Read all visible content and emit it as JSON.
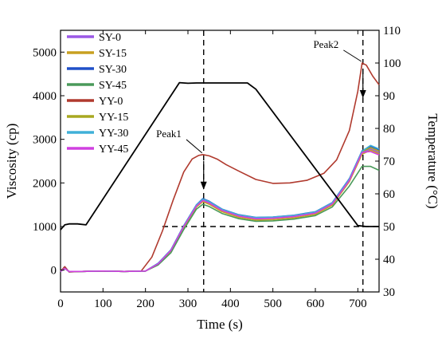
{
  "chart_data": {
    "type": "line",
    "xlabel": "Time (s)",
    "ylabel": "Viscosity (cp)",
    "y2label": "Temperature (°C)",
    "xlim": [
      0,
      750
    ],
    "ylim": [
      -500,
      5500
    ],
    "y2lim": [
      30,
      110
    ],
    "xticks": [
      0,
      100,
      200,
      300,
      400,
      500,
      600,
      700
    ],
    "yticks": [
      0,
      1000,
      2000,
      3000,
      4000,
      5000
    ],
    "y2ticks": [
      30,
      40,
      50,
      60,
      70,
      80,
      90,
      100,
      110
    ],
    "grid": false,
    "legend_position": "top-left",
    "series": [
      {
        "name": "SY-0",
        "color": "#9b59e6",
        "axis": "left",
        "x": [
          0,
          10,
          20,
          50,
          100,
          150,
          200,
          230,
          260,
          290,
          320,
          335,
          350,
          380,
          420,
          460,
          500,
          550,
          600,
          640,
          680,
          710,
          730,
          750
        ],
        "values": [
          -30,
          80,
          -40,
          -30,
          -20,
          -30,
          -20,
          150,
          450,
          1000,
          1480,
          1600,
          1540,
          1370,
          1240,
          1180,
          1190,
          1230,
          1310,
          1520,
          2060,
          2690,
          2780,
          2700
        ]
      },
      {
        "name": "SY-15",
        "color": "#c8a020",
        "axis": "left",
        "x": [
          0,
          10,
          20,
          50,
          100,
          150,
          200,
          230,
          260,
          290,
          320,
          335,
          350,
          380,
          420,
          460,
          500,
          550,
          600,
          640,
          680,
          710,
          730,
          750
        ],
        "values": [
          -30,
          40,
          -30,
          -30,
          -20,
          -30,
          -20,
          140,
          440,
          980,
          1450,
          1570,
          1510,
          1340,
          1210,
          1150,
          1160,
          1200,
          1280,
          1490,
          2030,
          2660,
          2750,
          2670
        ]
      },
      {
        "name": "SY-30",
        "color": "#2050c8",
        "axis": "left",
        "x": [
          0,
          10,
          20,
          50,
          100,
          150,
          200,
          230,
          260,
          290,
          320,
          335,
          350,
          380,
          420,
          460,
          500,
          550,
          600,
          640,
          680,
          710,
          730,
          750
        ],
        "values": [
          -30,
          40,
          -30,
          -30,
          -20,
          -30,
          -20,
          160,
          470,
          1020,
          1500,
          1640,
          1580,
          1400,
          1270,
          1210,
          1220,
          1260,
          1340,
          1550,
          2100,
          2740,
          2840,
          2760
        ]
      },
      {
        "name": "SY-45",
        "color": "#4a9a5a",
        "axis": "left",
        "x": [
          0,
          10,
          20,
          50,
          100,
          150,
          200,
          230,
          260,
          290,
          320,
          335,
          350,
          380,
          420,
          460,
          500,
          550,
          600,
          640,
          680,
          710,
          730,
          750
        ],
        "values": [
          -30,
          40,
          -30,
          -30,
          -20,
          -30,
          -20,
          120,
          400,
          930,
          1400,
          1510,
          1460,
          1300,
          1180,
          1120,
          1130,
          1170,
          1250,
          1450,
          1930,
          2380,
          2380,
          2290
        ]
      },
      {
        "name": "YY-0",
        "color": "#b03a2e",
        "axis": "left",
        "x": [
          0,
          10,
          20,
          50,
          100,
          150,
          190,
          215,
          240,
          265,
          290,
          310,
          325,
          335,
          350,
          370,
          390,
          420,
          460,
          500,
          540,
          580,
          620,
          650,
          680,
          700,
          710,
          720,
          735,
          750
        ],
        "values": [
          -30,
          80,
          -40,
          -30,
          -20,
          -30,
          -20,
          300,
          900,
          1600,
          2250,
          2550,
          2630,
          2650,
          2620,
          2540,
          2420,
          2270,
          2080,
          1990,
          2000,
          2060,
          2220,
          2530,
          3200,
          4100,
          4750,
          4700,
          4450,
          4250
        ]
      },
      {
        "name": "YY-15",
        "color": "#a8a820",
        "axis": "left",
        "x": [
          0,
          10,
          20,
          50,
          100,
          150,
          200,
          230,
          260,
          290,
          320,
          335,
          350,
          380,
          420,
          460,
          500,
          550,
          600,
          640,
          680,
          710,
          730,
          750
        ],
        "values": [
          -30,
          40,
          -30,
          -30,
          -20,
          -30,
          -20,
          150,
          460,
          1010,
          1490,
          1620,
          1560,
          1390,
          1260,
          1200,
          1210,
          1250,
          1330,
          1540,
          2080,
          2720,
          2810,
          2730
        ]
      },
      {
        "name": "YY-30",
        "color": "#40b0d8",
        "axis": "left",
        "x": [
          0,
          10,
          20,
          50,
          100,
          150,
          200,
          230,
          260,
          290,
          320,
          335,
          350,
          380,
          420,
          460,
          500,
          550,
          600,
          640,
          680,
          710,
          730,
          750
        ],
        "values": [
          -30,
          40,
          -30,
          -30,
          -20,
          -30,
          -20,
          155,
          465,
          1015,
          1495,
          1630,
          1570,
          1395,
          1265,
          1205,
          1215,
          1255,
          1335,
          1545,
          2090,
          2730,
          2860,
          2780
        ]
      },
      {
        "name": "YY-45",
        "color": "#d040e0",
        "axis": "left",
        "x": [
          0,
          10,
          20,
          50,
          100,
          150,
          200,
          230,
          260,
          290,
          320,
          335,
          350,
          380,
          420,
          460,
          500,
          550,
          600,
          640,
          680,
          710,
          730,
          750
        ],
        "values": [
          -30,
          40,
          -30,
          -30,
          -20,
          -30,
          -20,
          145,
          455,
          1000,
          1470,
          1600,
          1540,
          1370,
          1240,
          1180,
          1190,
          1230,
          1310,
          1520,
          2060,
          2700,
          2720,
          2640
        ]
      },
      {
        "name": "",
        "color": "#000000",
        "axis": "right",
        "x": [
          0,
          10,
          20,
          40,
          60,
          280,
          300,
          320,
          440,
          460,
          700,
          720,
          750
        ],
        "values": [
          49,
          50.5,
          50.8,
          50.8,
          50.5,
          94,
          93.8,
          93.9,
          93.9,
          92,
          50.3,
          50,
          50
        ]
      }
    ],
    "annotations": [
      {
        "text": "Peak1",
        "x": 337,
        "y": 2650,
        "label_x": 255,
        "label_y": 3050
      },
      {
        "text": "Peak2",
        "x": 712,
        "y": 4750,
        "label_x": 625,
        "label_y": 5100
      }
    ],
    "reference_lines": {
      "vertical_x": [
        337,
        712
      ],
      "horizontal_y": 1000,
      "horizontal_x_range": [
        240,
        750
      ]
    }
  }
}
